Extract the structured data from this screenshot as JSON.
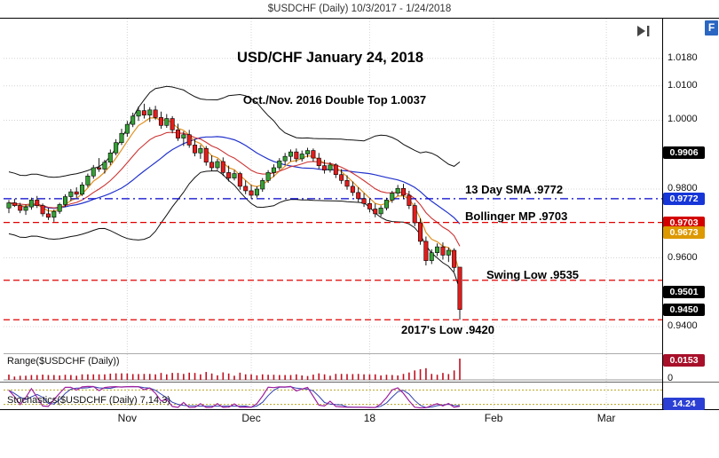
{
  "window": {
    "title": "$USDCHF (Daily) 10/3/2017 - 1/24/2018"
  },
  "logo": {
    "label": "F",
    "color": "#2B66C2"
  },
  "chart_data": {
    "type": "candlestick",
    "symbol": "$USDCHF",
    "timeframe": "Daily",
    "annotations": {
      "heading": "USD/CHF January 24, 2018",
      "double_top": "Oct./Nov. 2016 Double Top 1.0037",
      "sma_label": "13 Day SMA .9772",
      "bollinger_label": "Bollinger MP .9703",
      "swing_low_label": "Swing Low .9535",
      "low_2017_label": "2017's Low .9420"
    },
    "y_axis": {
      "ticks": [
        "1.0180",
        "1.0100",
        "1.0000",
        "0.9800",
        "0.9600",
        "0.9400"
      ],
      "range_pane_ticks": [
        "0"
      ]
    },
    "x_axis": {
      "labels": [
        {
          "label": "Nov",
          "index": 21
        },
        {
          "label": "Dec",
          "index": 43
        },
        {
          "label": "18",
          "index": 64
        },
        {
          "label": "Feb",
          "index": 86
        },
        {
          "label": "Mar",
          "index": 106
        }
      ]
    },
    "levels": [
      {
        "name": "13 Day SMA",
        "price": 0.9772,
        "color": "#0000CC",
        "style": "dashdot"
      },
      {
        "name": "Bollinger MP",
        "price": 0.9703,
        "color": "#E00000",
        "style": "dashed"
      },
      {
        "name": "Swing Low",
        "price": 0.9535,
        "color": "#E00000",
        "style": "dashed"
      },
      {
        "name": "2017 Low",
        "price": 0.942,
        "color": "#E00000",
        "style": "dashed"
      }
    ],
    "price_badges": [
      {
        "value": "0.9906",
        "color": "#000000"
      },
      {
        "value": "0.9772",
        "color": "#1636D8"
      },
      {
        "value": "0.9703",
        "color": "#D40000"
      },
      {
        "value": "0.9673",
        "color": "#DD9900"
      },
      {
        "value": "0.9501",
        "color": "#000000"
      },
      {
        "value": "0.9450",
        "color": "#000000"
      }
    ],
    "indicator_badges": {
      "range": {
        "value": "0.0153",
        "color": "#A8102A"
      },
      "stochastics": {
        "value": "14.24",
        "color": "#2B3FD4"
      }
    },
    "range_indicator": {
      "name": "Range($USDCHF (Daily))",
      "max": 0.0153
    },
    "stochastics_indicator": {
      "name": "Stochastics($USDCHF (Daily) 7,14,3)",
      "params": "7,14,3"
    },
    "palette": {
      "up": "#35A035",
      "down": "#E41C1C",
      "wick": "#000000",
      "bollinger": "#111111",
      "sma_blue": "#2233CC",
      "ema_orange": "#E09020",
      "ema_red": "#CC3333",
      "range_bar": "#C01020",
      "stoch_k": "#A020A0",
      "stoch_d": "#3040B0",
      "grid": "#D4D4D4"
    },
    "candles": [
      [
        0.9745,
        0.9768,
        0.973,
        0.976
      ],
      [
        0.976,
        0.9772,
        0.9748,
        0.9752
      ],
      [
        0.9752,
        0.976,
        0.973,
        0.9738
      ],
      [
        0.9738,
        0.9755,
        0.9725,
        0.9748
      ],
      [
        0.9748,
        0.9775,
        0.974,
        0.9768
      ],
      [
        0.9768,
        0.978,
        0.9745,
        0.9752
      ],
      [
        0.9752,
        0.9758,
        0.972,
        0.9728
      ],
      [
        0.9728,
        0.9745,
        0.971,
        0.9718
      ],
      [
        0.9718,
        0.974,
        0.9705,
        0.9735
      ],
      [
        0.9735,
        0.976,
        0.9728,
        0.9755
      ],
      [
        0.9755,
        0.9785,
        0.9748,
        0.9778
      ],
      [
        0.9778,
        0.98,
        0.9765,
        0.9792
      ],
      [
        0.9792,
        0.9805,
        0.9775,
        0.9785
      ],
      [
        0.9785,
        0.982,
        0.978,
        0.9812
      ],
      [
        0.9812,
        0.9845,
        0.9805,
        0.9838
      ],
      [
        0.9838,
        0.987,
        0.983,
        0.9862
      ],
      [
        0.9862,
        0.989,
        0.985,
        0.9858
      ],
      [
        0.9858,
        0.9885,
        0.9845,
        0.9878
      ],
      [
        0.9878,
        0.9915,
        0.987,
        0.9905
      ],
      [
        0.9905,
        0.9945,
        0.9898,
        0.9935
      ],
      [
        0.9935,
        0.9975,
        0.9928,
        0.9962
      ],
      [
        0.9962,
        0.9998,
        0.9952,
        0.9988
      ],
      [
        0.9988,
        1.0022,
        0.998,
        1.0012
      ],
      [
        1.0012,
        1.004,
        0.9998,
        1.0028
      ],
      [
        1.0028,
        1.0048,
        1.0005,
        1.0015
      ],
      [
        1.0015,
        1.0038,
        0.9995,
        1.003
      ],
      [
        1.003,
        1.0042,
        1.0002,
        1.0008
      ],
      [
        1.0008,
        1.0025,
        0.9975,
        0.9985
      ],
      [
        0.9985,
        1.0018,
        0.9978,
        1.0005
      ],
      [
        1.0005,
        1.0012,
        0.9962,
        0.9972
      ],
      [
        0.9972,
        0.999,
        0.994,
        0.9948
      ],
      [
        0.9948,
        0.9968,
        0.9925,
        0.9958
      ],
      [
        0.9958,
        0.9972,
        0.992,
        0.9928
      ],
      [
        0.9928,
        0.9945,
        0.9895,
        0.9905
      ],
      [
        0.9905,
        0.9928,
        0.9888,
        0.9918
      ],
      [
        0.9918,
        0.9925,
        0.9868,
        0.9878
      ],
      [
        0.9878,
        0.9898,
        0.9852,
        0.9862
      ],
      [
        0.9862,
        0.9888,
        0.9855,
        0.988
      ],
      [
        0.988,
        0.9892,
        0.9838,
        0.9848
      ],
      [
        0.9848,
        0.9868,
        0.9822,
        0.9832
      ],
      [
        0.9832,
        0.9855,
        0.9825,
        0.9845
      ],
      [
        0.9845,
        0.985,
        0.9798,
        0.9808
      ],
      [
        0.9808,
        0.9825,
        0.9785,
        0.9795
      ],
      [
        0.9795,
        0.9812,
        0.9772,
        0.9782
      ],
      [
        0.9782,
        0.9808,
        0.9775,
        0.98
      ],
      [
        0.98,
        0.9832,
        0.9792,
        0.9825
      ],
      [
        0.9825,
        0.9855,
        0.9818,
        0.9848
      ],
      [
        0.9848,
        0.9872,
        0.9835,
        0.9862
      ],
      [
        0.9862,
        0.989,
        0.9855,
        0.9882
      ],
      [
        0.9882,
        0.9905,
        0.987,
        0.9895
      ],
      [
        0.9895,
        0.9915,
        0.988,
        0.9908
      ],
      [
        0.9908,
        0.9918,
        0.9878,
        0.9888
      ],
      [
        0.9888,
        0.9912,
        0.988,
        0.9902
      ],
      [
        0.9902,
        0.992,
        0.9892,
        0.9912
      ],
      [
        0.9912,
        0.9918,
        0.988,
        0.989
      ],
      [
        0.989,
        0.9905,
        0.9858,
        0.9868
      ],
      [
        0.9868,
        0.9885,
        0.9845,
        0.9855
      ],
      [
        0.9855,
        0.9878,
        0.9848,
        0.987
      ],
      [
        0.987,
        0.9875,
        0.9832,
        0.9842
      ],
      [
        0.9842,
        0.9858,
        0.9815,
        0.9825
      ],
      [
        0.9825,
        0.984,
        0.9798,
        0.9808
      ],
      [
        0.9808,
        0.9822,
        0.978,
        0.979
      ],
      [
        0.979,
        0.9805,
        0.9762,
        0.9772
      ],
      [
        0.9772,
        0.9788,
        0.9748,
        0.9758
      ],
      [
        0.9758,
        0.9772,
        0.9732,
        0.9742
      ],
      [
        0.9742,
        0.9758,
        0.9718,
        0.9728
      ],
      [
        0.9728,
        0.9752,
        0.972,
        0.9745
      ],
      [
        0.9745,
        0.9775,
        0.9738,
        0.9768
      ],
      [
        0.9768,
        0.9795,
        0.976,
        0.9788
      ],
      [
        0.9788,
        0.9812,
        0.978,
        0.9802
      ],
      [
        0.9802,
        0.9815,
        0.9772,
        0.9782
      ],
      [
        0.9782,
        0.9795,
        0.9742,
        0.9752
      ],
      [
        0.9752,
        0.976,
        0.9692,
        0.9702
      ],
      [
        0.9702,
        0.9715,
        0.9638,
        0.9648
      ],
      [
        0.9648,
        0.9662,
        0.9578,
        0.9592
      ],
      [
        0.9592,
        0.9625,
        0.9582,
        0.9615
      ],
      [
        0.9615,
        0.9642,
        0.9605,
        0.9632
      ],
      [
        0.9632,
        0.9645,
        0.9595,
        0.9608
      ],
      [
        0.9608,
        0.963,
        0.9588,
        0.9622
      ],
      [
        0.9622,
        0.9628,
        0.956,
        0.9572
      ],
      [
        0.9573,
        0.9573,
        0.942,
        0.945
      ]
    ]
  }
}
